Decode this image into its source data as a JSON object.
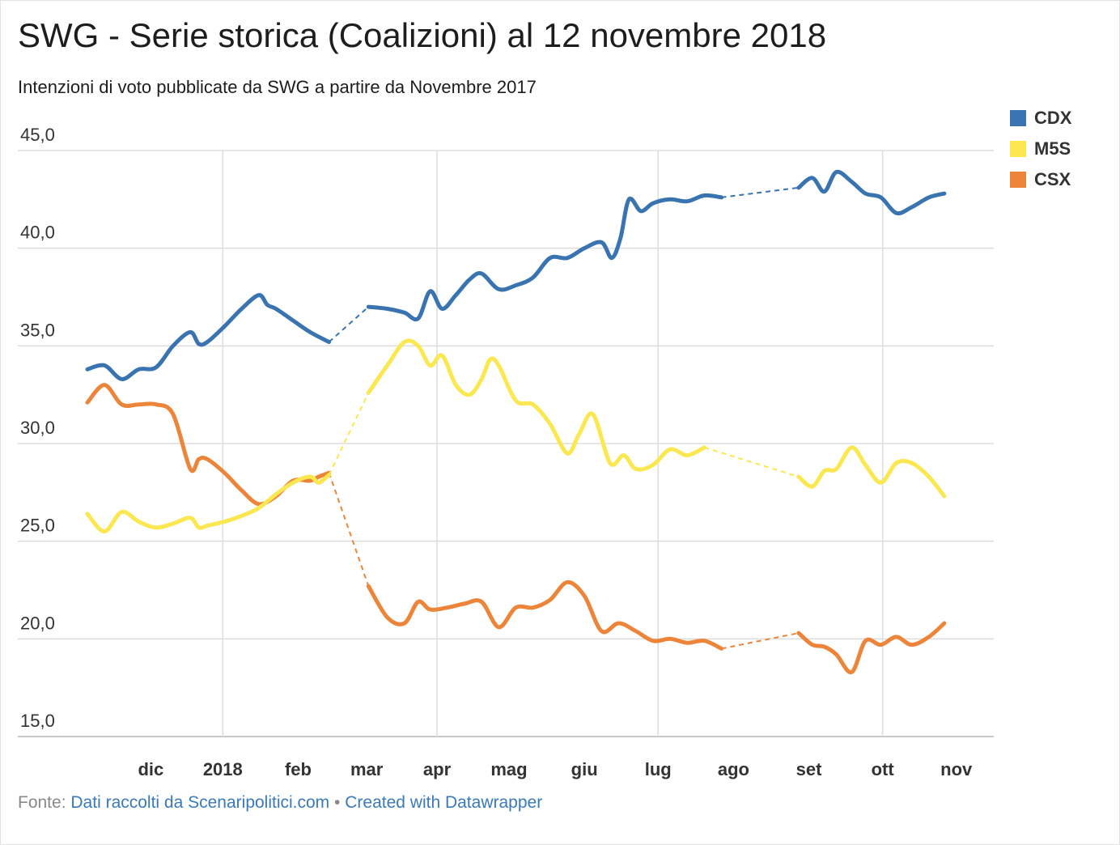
{
  "header": {
    "title": "SWG - Serie storica (Coalizioni) al 12 novembre 2018",
    "subtitle": "Intenzioni di voto pubblicate da SWG a partire da Novembre 2017"
  },
  "footer": {
    "prefix": "Fonte:",
    "source": "Dati raccolti da Scenaripolitici.com",
    "separator": "•",
    "credit": "Created with Datawrapper"
  },
  "chart_data": {
    "type": "line",
    "title": "SWG - Serie storica (Coalizioni) al 12 novembre 2018",
    "xlabel": "",
    "ylabel": "",
    "x_unit": "weeks since 2017-11-06",
    "xlim": [
      0,
      53.5
    ],
    "ylim": [
      15,
      45
    ],
    "yticks": [
      15,
      20,
      25,
      30,
      35,
      40,
      45
    ],
    "ytick_labels": [
      "15,0",
      "20,0",
      "25,0",
      "30,0",
      "35,0",
      "40,0",
      "45,0"
    ],
    "xticks": [
      {
        "label": "dic",
        "x": 3.7
      },
      {
        "label": "2018",
        "x": 7.9
      },
      {
        "label": "feb",
        "x": 12.3
      },
      {
        "label": "mar",
        "x": 16.3
      },
      {
        "label": "apr",
        "x": 20.4
      },
      {
        "label": "mag",
        "x": 24.6
      },
      {
        "label": "giu",
        "x": 29.0
      },
      {
        "label": "lug",
        "x": 33.3
      },
      {
        "label": "ago",
        "x": 37.7
      },
      {
        "label": "set",
        "x": 42.1
      },
      {
        "label": "ott",
        "x": 46.4
      },
      {
        "label": "nov",
        "x": 50.7
      }
    ],
    "gridlines_x": [
      7.9,
      20.4,
      33.3,
      46.4
    ],
    "grid": true,
    "legend_position": "top-right",
    "series": [
      {
        "name": "CDX",
        "color": "#3a74b0",
        "segments": [
          [
            [
              0,
              33.8
            ],
            [
              1,
              34.0
            ],
            [
              2,
              33.3
            ],
            [
              3,
              33.8
            ],
            [
              4,
              33.9
            ],
            [
              5,
              35.0
            ],
            [
              6,
              35.7
            ],
            [
              6.5,
              35.1
            ],
            [
              7,
              35.2
            ],
            [
              8,
              36.0
            ],
            [
              9,
              36.9
            ],
            [
              10,
              37.6
            ],
            [
              10.5,
              37.1
            ],
            [
              11,
              36.9
            ],
            [
              12,
              36.3
            ],
            [
              13,
              35.7
            ],
            [
              14.1,
              35.2
            ]
          ],
          [
            [
              16.4,
              37.0
            ],
            [
              17.5,
              36.9
            ],
            [
              18.5,
              36.7
            ],
            [
              19.3,
              36.4
            ],
            [
              20,
              37.8
            ],
            [
              20.7,
              36.9
            ],
            [
              21.5,
              37.6
            ],
            [
              22.3,
              38.4
            ],
            [
              23,
              38.7
            ],
            [
              24,
              37.9
            ],
            [
              25,
              38.1
            ],
            [
              26,
              38.5
            ],
            [
              27,
              39.5
            ],
            [
              28,
              39.5
            ],
            [
              29,
              40.0
            ],
            [
              30,
              40.3
            ],
            [
              30.6,
              39.5
            ],
            [
              31.1,
              40.5
            ],
            [
              31.6,
              42.5
            ],
            [
              32.3,
              41.9
            ],
            [
              33,
              42.3
            ],
            [
              34,
              42.5
            ],
            [
              35,
              42.4
            ],
            [
              36,
              42.7
            ],
            [
              37,
              42.6
            ]
          ],
          [
            [
              41.5,
              43.1
            ],
            [
              42.3,
              43.6
            ],
            [
              43,
              42.9
            ],
            [
              43.7,
              43.9
            ],
            [
              44.6,
              43.4
            ],
            [
              45.4,
              42.8
            ],
            [
              46.3,
              42.6
            ],
            [
              47.2,
              41.8
            ],
            [
              48.1,
              42.1
            ],
            [
              49.1,
              42.6
            ],
            [
              50,
              42.8
            ]
          ]
        ],
        "dashed_links": [
          [
            [
              14.1,
              35.2
            ],
            [
              16.4,
              37.0
            ]
          ],
          [
            [
              37,
              42.6
            ],
            [
              41.5,
              43.1
            ]
          ]
        ]
      },
      {
        "name": "M5S",
        "color": "#fbe74f",
        "segments": [
          [
            [
              0,
              26.4
            ],
            [
              1,
              25.5
            ],
            [
              2,
              26.5
            ],
            [
              3,
              26.0
            ],
            [
              4,
              25.7
            ],
            [
              5,
              25.9
            ],
            [
              6,
              26.2
            ],
            [
              6.5,
              25.7
            ],
            [
              7,
              25.8
            ],
            [
              8,
              26.0
            ],
            [
              9,
              26.3
            ],
            [
              10,
              26.7
            ],
            [
              11,
              27.4
            ],
            [
              12,
              28.0
            ],
            [
              13,
              28.3
            ],
            [
              13.5,
              28.0
            ],
            [
              14.1,
              28.4
            ]
          ],
          [
            [
              16.4,
              32.6
            ],
            [
              17.5,
              34.0
            ],
            [
              18.5,
              35.2
            ],
            [
              19.3,
              35.0
            ],
            [
              20,
              34.0
            ],
            [
              20.7,
              34.5
            ],
            [
              21.5,
              33.0
            ],
            [
              22.3,
              32.5
            ],
            [
              23,
              33.3
            ],
            [
              23.5,
              34.3
            ],
            [
              24,
              34.0
            ],
            [
              25,
              32.2
            ],
            [
              26,
              32.0
            ],
            [
              27,
              31.0
            ],
            [
              28,
              29.5
            ],
            [
              28.7,
              30.5
            ],
            [
              29.5,
              31.5
            ],
            [
              30.5,
              29.0
            ],
            [
              31.3,
              29.4
            ],
            [
              32,
              28.7
            ],
            [
              33,
              28.9
            ],
            [
              34,
              29.7
            ],
            [
              35,
              29.4
            ],
            [
              36,
              29.8
            ]
          ],
          [
            [
              41.5,
              28.3
            ],
            [
              42.3,
              27.8
            ],
            [
              43,
              28.6
            ],
            [
              43.7,
              28.7
            ],
            [
              44.6,
              29.8
            ],
            [
              45.4,
              28.9
            ],
            [
              46.3,
              28.0
            ],
            [
              47.2,
              29.0
            ],
            [
              48.1,
              29.0
            ],
            [
              49.1,
              28.3
            ],
            [
              50,
              27.3
            ]
          ]
        ],
        "dashed_links": [
          [
            [
              14.1,
              28.4
            ],
            [
              16.4,
              32.6
            ]
          ],
          [
            [
              36,
              29.8
            ],
            [
              41.5,
              28.3
            ]
          ]
        ]
      },
      {
        "name": "CSX",
        "color": "#ec853a",
        "segments": [
          [
            [
              0,
              32.1
            ],
            [
              1,
              33.0
            ],
            [
              2,
              32.0
            ],
            [
              3,
              32.0
            ],
            [
              4,
              32.0
            ],
            [
              5,
              31.5
            ],
            [
              6,
              28.7
            ],
            [
              6.5,
              29.2
            ],
            [
              7,
              29.2
            ],
            [
              8,
              28.5
            ],
            [
              9,
              27.6
            ],
            [
              10,
              26.9
            ],
            [
              11,
              27.3
            ],
            [
              12,
              28.1
            ],
            [
              13,
              28.1
            ],
            [
              13.5,
              28.3
            ],
            [
              14.1,
              28.5
            ]
          ],
          [
            [
              16.4,
              22.7
            ],
            [
              17.5,
              21.1
            ],
            [
              18.5,
              20.8
            ],
            [
              19.3,
              21.9
            ],
            [
              20,
              21.5
            ],
            [
              21,
              21.6
            ],
            [
              22,
              21.8
            ],
            [
              23,
              21.9
            ],
            [
              24,
              20.6
            ],
            [
              25,
              21.6
            ],
            [
              26,
              21.6
            ],
            [
              27,
              22.0
            ],
            [
              28,
              22.9
            ],
            [
              29,
              22.2
            ],
            [
              30,
              20.4
            ],
            [
              31,
              20.8
            ],
            [
              32,
              20.4
            ],
            [
              33,
              19.9
            ],
            [
              34,
              20.0
            ],
            [
              35,
              19.8
            ],
            [
              36,
              19.9
            ],
            [
              37,
              19.5
            ]
          ],
          [
            [
              41.5,
              20.3
            ],
            [
              42.3,
              19.7
            ],
            [
              43,
              19.6
            ],
            [
              43.7,
              19.2
            ],
            [
              44.6,
              18.3
            ],
            [
              45.4,
              19.9
            ],
            [
              46.3,
              19.7
            ],
            [
              47.2,
              20.1
            ],
            [
              48.1,
              19.7
            ],
            [
              49.1,
              20.1
            ],
            [
              50,
              20.8
            ]
          ]
        ],
        "dashed_links": [
          [
            [
              14.1,
              28.5
            ],
            [
              16.4,
              22.7
            ]
          ],
          [
            [
              37,
              19.5
            ],
            [
              41.5,
              20.3
            ]
          ]
        ]
      }
    ]
  }
}
